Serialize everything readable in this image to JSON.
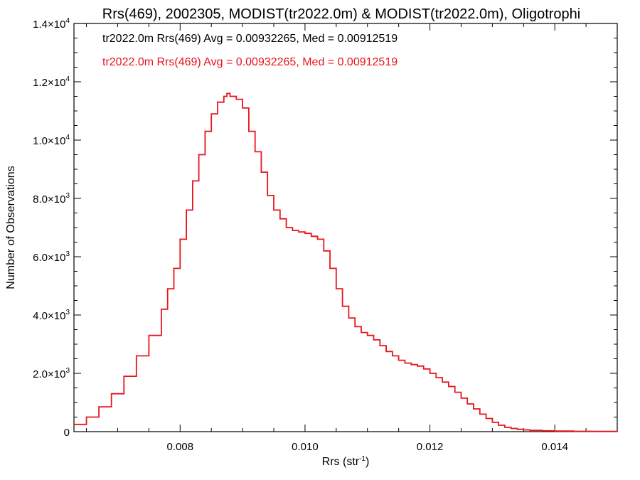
{
  "chart_data": {
    "type": "line",
    "title": "Rrs(469), 2002305, MODIST(tr2022.0m) & MODIST(tr2022.0m), Oligotrophi",
    "xlabel_main": "Rrs (str",
    "xlabel_sup": "-1",
    "xlabel_end": ")",
    "ylabel": "Number of Observations",
    "xlim": [
      0.0063,
      0.015
    ],
    "ylim": [
      0,
      14000
    ],
    "xticks": [
      {
        "value": 0.008,
        "label": "0.008"
      },
      {
        "value": 0.01,
        "label": "0.010"
      },
      {
        "value": 0.012,
        "label": "0.012"
      },
      {
        "value": 0.014,
        "label": "0.014"
      }
    ],
    "yticks": [
      {
        "value": 0,
        "mant": "0",
        "exp": ""
      },
      {
        "value": 2000,
        "mant": "2.0×10",
        "exp": "3"
      },
      {
        "value": 4000,
        "mant": "4.0×10",
        "exp": "3"
      },
      {
        "value": 6000,
        "mant": "6.0×10",
        "exp": "3"
      },
      {
        "value": 8000,
        "mant": "8.0×10",
        "exp": "3"
      },
      {
        "value": 10000,
        "mant": "1.0×10",
        "exp": "4"
      },
      {
        "value": 12000,
        "mant": "1.2×10",
        "exp": "4"
      },
      {
        "value": 14000,
        "mant": "1.4×10",
        "exp": "4"
      }
    ],
    "legend": [
      {
        "text": "tr2022.0m Rrs(469) Avg = 0.00932265, Med = 0.00912519",
        "color": "#000000"
      },
      {
        "text": "tr2022.0m Rrs(469) Avg = 0.00932265, Med = 0.00912519",
        "color": "#e8141c"
      }
    ],
    "series": [
      {
        "color": "#e8141c",
        "x": [
          0.0063,
          0.0065,
          0.0067,
          0.0069,
          0.0071,
          0.0073,
          0.0075,
          0.0077,
          0.0078,
          0.0079,
          0.008,
          0.0081,
          0.0082,
          0.0083,
          0.0084,
          0.0085,
          0.0086,
          0.0087,
          0.00875,
          0.0088,
          0.0089,
          0.009,
          0.0091,
          0.0092,
          0.0093,
          0.0094,
          0.0095,
          0.0096,
          0.0097,
          0.0098,
          0.0099,
          0.01,
          0.0101,
          0.0102,
          0.0103,
          0.0104,
          0.0105,
          0.0106,
          0.0107,
          0.0108,
          0.0109,
          0.011,
          0.0111,
          0.0112,
          0.0113,
          0.0114,
          0.0115,
          0.0116,
          0.0117,
          0.0118,
          0.0119,
          0.012,
          0.0121,
          0.0122,
          0.0123,
          0.0124,
          0.0125,
          0.0126,
          0.0127,
          0.0128,
          0.0129,
          0.013,
          0.0131,
          0.0132,
          0.0133,
          0.0134,
          0.0135,
          0.0136,
          0.0138,
          0.014,
          0.0143,
          0.0146,
          0.015
        ],
        "y": [
          250,
          500,
          850,
          1300,
          1900,
          2600,
          3300,
          4200,
          4900,
          5600,
          6600,
          7600,
          8600,
          9500,
          10300,
          10900,
          11300,
          11500,
          11600,
          11500,
          11400,
          11100,
          10300,
          9600,
          8900,
          8100,
          7600,
          7300,
          7000,
          6900,
          6850,
          6800,
          6700,
          6600,
          6200,
          5600,
          4900,
          4300,
          3900,
          3600,
          3400,
          3300,
          3150,
          2950,
          2750,
          2600,
          2450,
          2350,
          2300,
          2250,
          2150,
          2000,
          1850,
          1700,
          1550,
          1350,
          1150,
          950,
          780,
          600,
          450,
          320,
          220,
          150,
          110,
          80,
          60,
          45,
          30,
          20,
          12,
          8,
          5
        ]
      }
    ]
  }
}
